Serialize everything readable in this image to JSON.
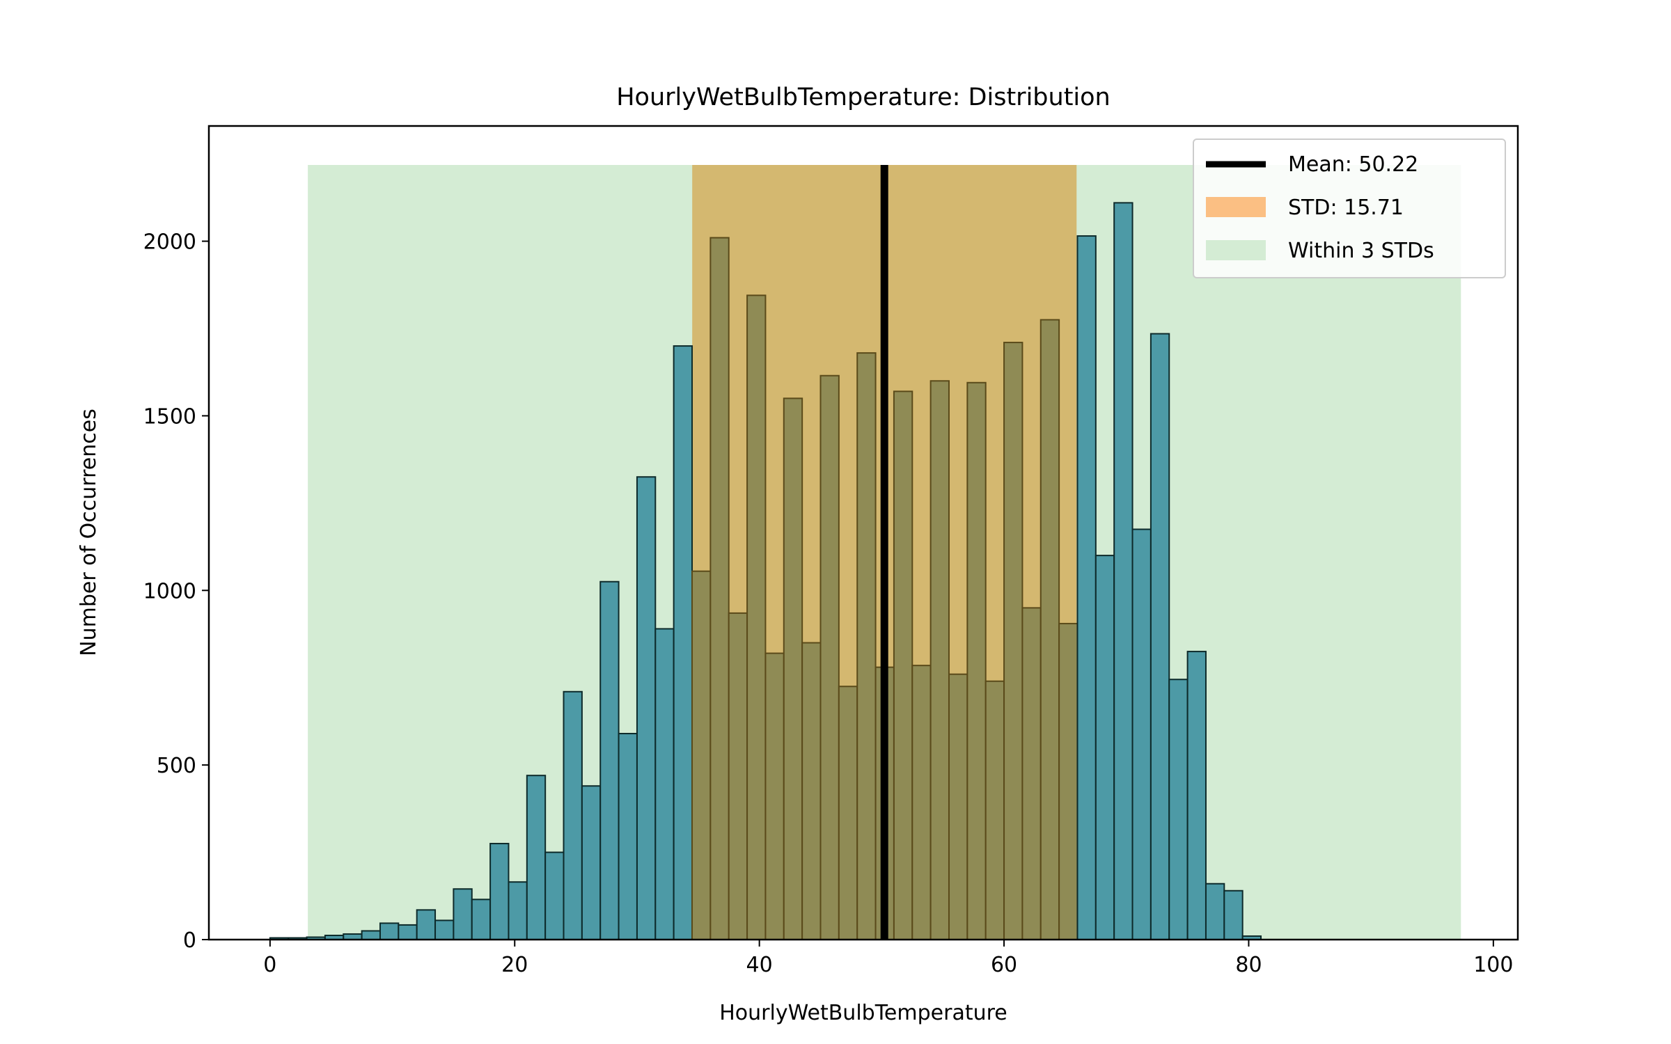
{
  "chart_data": {
    "type": "bar",
    "title": "HourlyWetBulbTemperature: Distribution",
    "xlabel": "HourlyWetBulbTemperature",
    "ylabel": "Number of Occurrences",
    "xlim": [
      -5,
      102
    ],
    "ylim": [
      0,
      2330
    ],
    "xticks": [
      0,
      20,
      40,
      60,
      80,
      100
    ],
    "yticks": [
      0,
      500,
      1000,
      1500,
      2000
    ],
    "grid": false,
    "legend_position": "top-right",
    "bin_start": 0,
    "bin_width": 1.5,
    "values": [
      5,
      5,
      7,
      12,
      16,
      25,
      47,
      42,
      85,
      55,
      145,
      115,
      275,
      165,
      470,
      250,
      710,
      440,
      1025,
      590,
      1325,
      890,
      1700,
      1055,
      2010,
      935,
      1845,
      820,
      1550,
      850,
      1615,
      725,
      1680,
      780,
      1570,
      785,
      1600,
      760,
      1595,
      740,
      1710,
      950,
      1775,
      905,
      2015,
      1100,
      2110,
      1175,
      1735,
      745,
      825,
      160,
      140,
      10
    ],
    "mean": 50.22,
    "std": 15.71,
    "std_band": [
      34.51,
      65.93
    ],
    "three_std_band": [
      3.09,
      97.35
    ],
    "series": [
      {
        "name": "Mean: 50.22",
        "color": "#000000"
      },
      {
        "name": "STD: 15.71",
        "color": "#fbbf83"
      },
      {
        "name": "Within 3 STDs",
        "color": "#d4ecd4"
      }
    ],
    "colors": {
      "bar_fill": "#4d9aa6",
      "bar_edge": "#0d2a2a",
      "three_std_fill": "#d4ecd4",
      "std_fill": "#d4b870",
      "bar_in_std_fill": "#8f8b55"
    }
  }
}
